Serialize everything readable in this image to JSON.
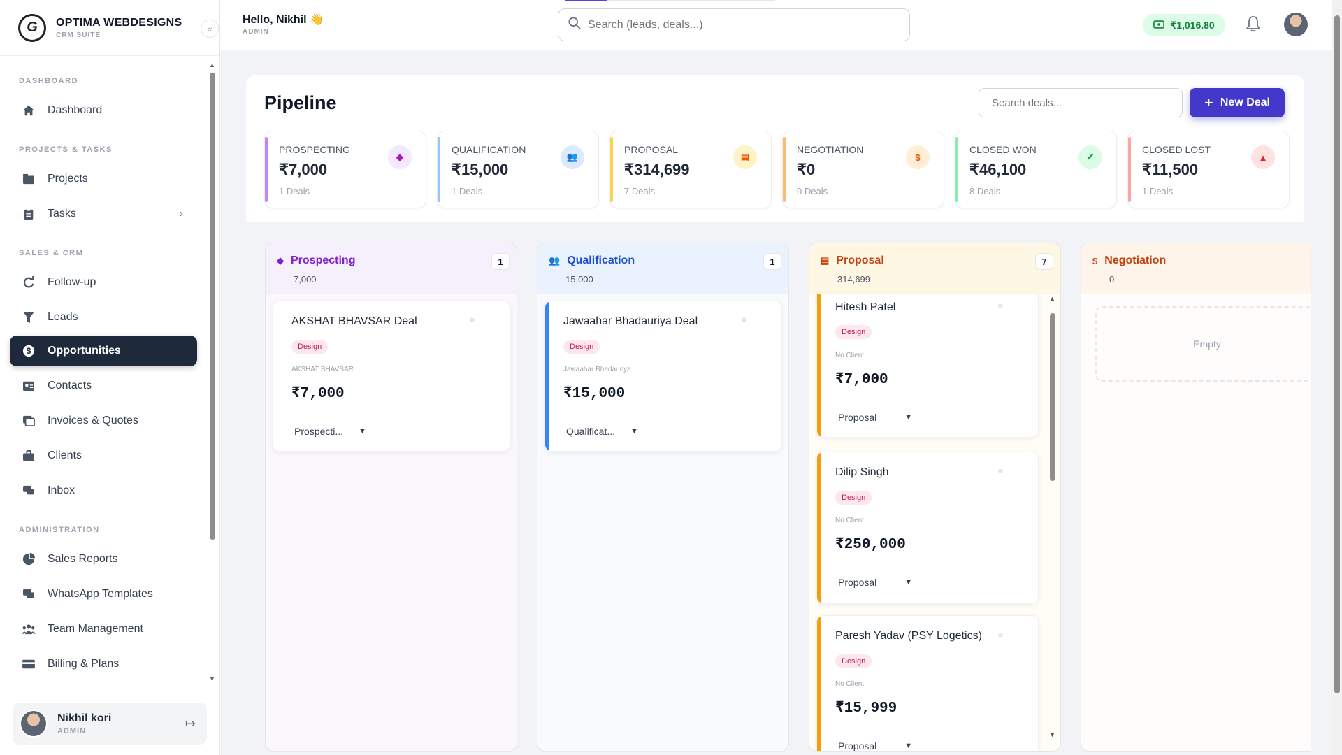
{
  "brand": {
    "name": "OPTIMA WEBDESIGNS",
    "sub": "CRM SUITE",
    "logo_letter": "G"
  },
  "header": {
    "greeting": "Hello, Nikhil 👋",
    "role": "ADMIN",
    "search_placeholder": "Search (leads, deals...)",
    "wallet": "₹1,016.80"
  },
  "sidebar": {
    "sections": {
      "dashboard": "DASHBOARD",
      "projects": "PROJECTS & TASKS",
      "sales": "SALES & CRM",
      "admin": "ADMINISTRATION"
    },
    "items": [
      {
        "label": "Dashboard",
        "icon": "home-icon"
      },
      {
        "label": "Projects",
        "icon": "folder-icon"
      },
      {
        "label": "Tasks",
        "icon": "clipboard-icon"
      },
      {
        "label": "Follow-up",
        "icon": "refresh-icon"
      },
      {
        "label": "Leads",
        "icon": "funnel-icon"
      },
      {
        "label": "Opportunities",
        "icon": "dollar-icon"
      },
      {
        "label": "Contacts",
        "icon": "contact-card-icon"
      },
      {
        "label": "Invoices & Quotes",
        "icon": "invoice-icon"
      },
      {
        "label": "Clients",
        "icon": "briefcase-icon"
      },
      {
        "label": "Inbox",
        "icon": "chat-icon"
      },
      {
        "label": "Sales Reports",
        "icon": "pie-chart-icon"
      },
      {
        "label": "WhatsApp Templates",
        "icon": "comments-icon"
      },
      {
        "label": "Team Management",
        "icon": "users-icon"
      },
      {
        "label": "Billing & Plans",
        "icon": "credit-card-icon"
      }
    ],
    "user": {
      "name": "Nikhil kori",
      "role": "ADMIN"
    }
  },
  "page": {
    "title": "Pipeline",
    "search_placeholder": "Search deals...",
    "new_deal": "New Deal"
  },
  "stats": [
    {
      "label": "PROSPECTING",
      "value": "₹7,000",
      "count": "1 Deals",
      "color": "#a855f7"
    },
    {
      "label": "QUALIFICATION",
      "value": "₹15,000",
      "count": "1 Deals",
      "color": "#2563eb"
    },
    {
      "label": "PROPOSAL",
      "value": "₹314,699",
      "count": "7 Deals",
      "color": "#f59e0b"
    },
    {
      "label": "NEGOTIATION",
      "value": "₹0",
      "count": "0 Deals",
      "color": "#f97316"
    },
    {
      "label": "CLOSED WON",
      "value": "₹46,100",
      "count": "8 Deals",
      "color": "#16a34a"
    },
    {
      "label": "CLOSED LOST",
      "value": "₹11,500",
      "count": "1 Deals",
      "color": "#dc2626"
    }
  ],
  "columns": [
    {
      "title": "Prospecting",
      "sum": "7,000",
      "count": "1",
      "color": "#7e22ce",
      "cards": [
        {
          "name": "AKSHAT BHAVSAR Deal",
          "tag": "Design",
          "client": "AKSHAT BHAVSAR",
          "amount": "₹7,000",
          "stage": "Prospecti..."
        }
      ]
    },
    {
      "title": "Qualification",
      "sum": "15,000",
      "count": "1",
      "color": "#1d4ed8",
      "cards": [
        {
          "name": "Jawaahar Bhadauriya Deal",
          "tag": "Design",
          "client": "Jawaahar Bhadauriya",
          "amount": "₹15,000",
          "stage": "Qualificat..."
        }
      ]
    },
    {
      "title": "Proposal",
      "sum": "314,699",
      "count": "7",
      "color": "#c2410c",
      "cards": [
        {
          "name": "Hitesh Patel",
          "tag": "Design",
          "client": "No Client",
          "amount": "₹7,000",
          "stage": "Proposal"
        },
        {
          "name": "Dilip Singh",
          "tag": "Design",
          "client": "No Client",
          "amount": "₹250,000",
          "stage": "Proposal"
        },
        {
          "name": "Paresh Yadav (PSY Logetics)",
          "tag": "Design",
          "client": "No Client",
          "amount": "₹15,999",
          "stage": "Proposal"
        }
      ]
    },
    {
      "title": "Negotiation",
      "sum": "0",
      "count": "",
      "color": "#c2410c",
      "empty": "Empty"
    }
  ]
}
